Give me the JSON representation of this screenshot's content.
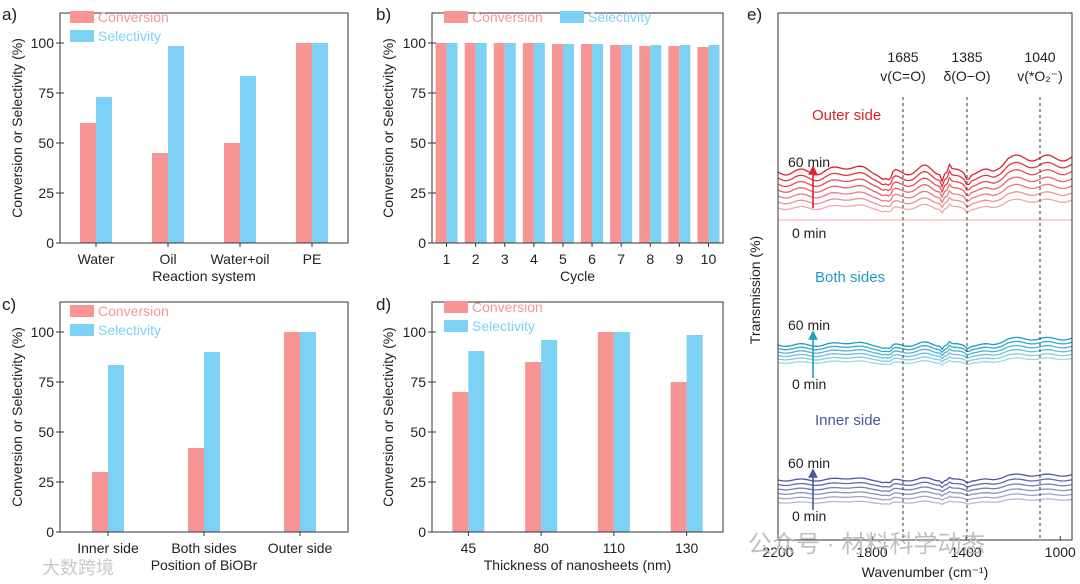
{
  "colors": {
    "conversion": "#F79595",
    "selectivity": "#7DD1F5",
    "red": "#D9242B",
    "teal": "#1C9CC6",
    "navy": "#4B57A0"
  },
  "chart_data": [
    {
      "id": "a",
      "panel_label": "a)",
      "type": "bar",
      "xlabel": "Reaction system",
      "ylabel": "Conversion or Selectivity (%)",
      "ylim": [
        0,
        115
      ],
      "yticks": [
        "0",
        "25",
        "50",
        "75",
        "100"
      ],
      "categories": [
        "Water",
        "Oil",
        "Water+oil",
        "PE"
      ],
      "series": [
        {
          "name": "Conversion",
          "values": [
            60,
            45,
            50,
            100
          ]
        },
        {
          "name": "Selectivity",
          "values": [
            73,
            98.5,
            83.5,
            100
          ]
        }
      ],
      "legend": "top-left"
    },
    {
      "id": "b",
      "panel_label": "b)",
      "type": "bar",
      "xlabel": "Cycle",
      "ylabel": "Conversion or Selectivity (%)",
      "ylim": [
        0,
        115
      ],
      "yticks": [
        "0",
        "25",
        "50",
        "75",
        "100"
      ],
      "categories": [
        "1",
        "2",
        "3",
        "4",
        "5",
        "6",
        "7",
        "8",
        "9",
        "10"
      ],
      "series": [
        {
          "name": "Conversion",
          "values": [
            100,
            100,
            100,
            100,
            99.5,
            99.5,
            99,
            98.5,
            98.5,
            98
          ]
        },
        {
          "name": "Selectivity",
          "values": [
            100,
            100,
            100,
            100,
            99.5,
            99.5,
            99,
            99,
            99,
            99
          ]
        }
      ],
      "legend": "top"
    },
    {
      "id": "c",
      "panel_label": "c)",
      "type": "bar",
      "xlabel": "Position of BiOBr",
      "ylabel": "Conversion or Selectivity (%)",
      "ylim": [
        0,
        115
      ],
      "yticks": [
        "0",
        "25",
        "50",
        "75",
        "100"
      ],
      "categories": [
        "Inner side",
        "Both sides",
        "Outer side"
      ],
      "series": [
        {
          "name": "Conversion",
          "values": [
            30,
            42,
            100
          ]
        },
        {
          "name": "Selectivity",
          "values": [
            83.5,
            90,
            100
          ]
        }
      ],
      "legend": "top-left"
    },
    {
      "id": "d",
      "panel_label": "d)",
      "type": "bar",
      "xlabel": "Thickness of nanosheets (nm)",
      "ylabel": "Conversion or Selectivity (%)",
      "ylim": [
        0,
        115
      ],
      "yticks": [
        "0",
        "25",
        "50",
        "75",
        "100"
      ],
      "categories": [
        "45",
        "80",
        "110",
        "130"
      ],
      "series": [
        {
          "name": "Conversion",
          "values": [
            70,
            85,
            100,
            75
          ]
        },
        {
          "name": "Selectivity",
          "values": [
            90.5,
            96,
            100,
            98.5
          ]
        }
      ],
      "legend": "top-left"
    },
    {
      "id": "e",
      "panel_label": "e)",
      "type": "line",
      "xlabel": "Wavenumber (cm⁻¹)",
      "ylabel": "Transmission (%)",
      "xlim": [
        2200,
        950
      ],
      "xticks": [
        "2200",
        "1800",
        "1400",
        "1000"
      ],
      "peaks": [
        {
          "wavenumber": "1685",
          "assignment": "v(C=O)"
        },
        {
          "wavenumber": "1385",
          "assignment": "δ(O−O)"
        },
        {
          "wavenumber": "1040",
          "assignment": "v(*O₂⁻)"
        }
      ],
      "groups": [
        {
          "name": "Outer side",
          "start": "60 min",
          "end": "0 min"
        },
        {
          "name": "Both sides",
          "start": "60 min",
          "end": "0 min"
        },
        {
          "name": "Inner side",
          "start": "60 min",
          "end": "0 min"
        }
      ]
    }
  ],
  "watermark": {
    "wechat": "公众号 · 材料科学动态",
    "weibo": "大数跨境"
  }
}
